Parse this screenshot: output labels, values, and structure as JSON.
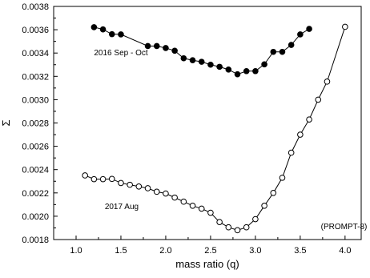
{
  "chart_data": {
    "type": "scatter",
    "xlabel": "mass ratio (q)",
    "ylabel": "Σ",
    "xlim": [
      0.75,
      4.18
    ],
    "ylim": [
      0.0018,
      0.0038
    ],
    "xticks": [
      1.0,
      1.5,
      2.0,
      2.5,
      3.0,
      3.5,
      4.0
    ],
    "xtick_labels": [
      "1.0",
      "1.5",
      "2.0",
      "2.5",
      "3.0",
      "3.5",
      "4.0"
    ],
    "yticks": [
      0.0018,
      0.002,
      0.0022,
      0.0024,
      0.0026,
      0.0028,
      0.003,
      0.0032,
      0.0034,
      0.0036,
      0.0038
    ],
    "ytick_labels": [
      "0.0018",
      "0.0020",
      "0.0022",
      "0.0024",
      "0.0026",
      "0.0028",
      "0.0030",
      "0.0032",
      "0.0034",
      "0.0036",
      "0.0038"
    ],
    "grid": false,
    "series": [
      {
        "name": "2016 Sep - Oct",
        "marker": "filled-circle",
        "color": "#000000",
        "x": [
          1.2,
          1.3,
          1.4,
          1.5,
          1.8,
          1.9,
          2.0,
          2.1,
          2.2,
          2.3,
          2.4,
          2.5,
          2.6,
          2.7,
          2.8,
          2.9,
          3.0,
          3.1,
          3.2,
          3.3,
          3.4,
          3.5,
          3.6
        ],
        "y": [
          0.003622,
          0.003603,
          0.003562,
          0.00356,
          0.00346,
          0.00346,
          0.003443,
          0.00342,
          0.003355,
          0.003338,
          0.003325,
          0.0033,
          0.003282,
          0.003258,
          0.003218,
          0.003245,
          0.003245,
          0.003303,
          0.00341,
          0.00341,
          0.00347,
          0.00356,
          0.003607
        ]
      },
      {
        "name": "2017 Aug",
        "marker": "open-circle",
        "color": "#000000",
        "x": [
          1.1,
          1.2,
          1.3,
          1.4,
          1.5,
          1.6,
          1.7,
          1.8,
          1.9,
          2.0,
          2.1,
          2.2,
          2.3,
          2.4,
          2.5,
          2.6,
          2.7,
          2.8,
          2.9,
          3.0,
          3.1,
          3.2,
          3.3,
          3.4,
          3.5,
          3.6,
          3.7,
          3.8,
          4.0
        ],
        "y": [
          0.00235,
          0.002318,
          0.002318,
          0.00232,
          0.002285,
          0.00227,
          0.002255,
          0.00224,
          0.00221,
          0.002195,
          0.00216,
          0.002125,
          0.00209,
          0.002065,
          0.00203,
          0.00195,
          0.001905,
          0.00188,
          0.001905,
          0.001975,
          0.00209,
          0.0022,
          0.00233,
          0.002545,
          0.0027,
          0.00283,
          0.003,
          0.003155,
          0.003625
        ]
      }
    ],
    "annotations": [
      {
        "text": "2016 Sep - Oct",
        "x": 1.2,
        "y": 0.00338
      },
      {
        "text": "2017 Aug",
        "x": 1.32,
        "y": 0.00206
      },
      {
        "text": "(PROMPT-8)",
        "x": 3.73,
        "y": 0.00189
      }
    ]
  }
}
